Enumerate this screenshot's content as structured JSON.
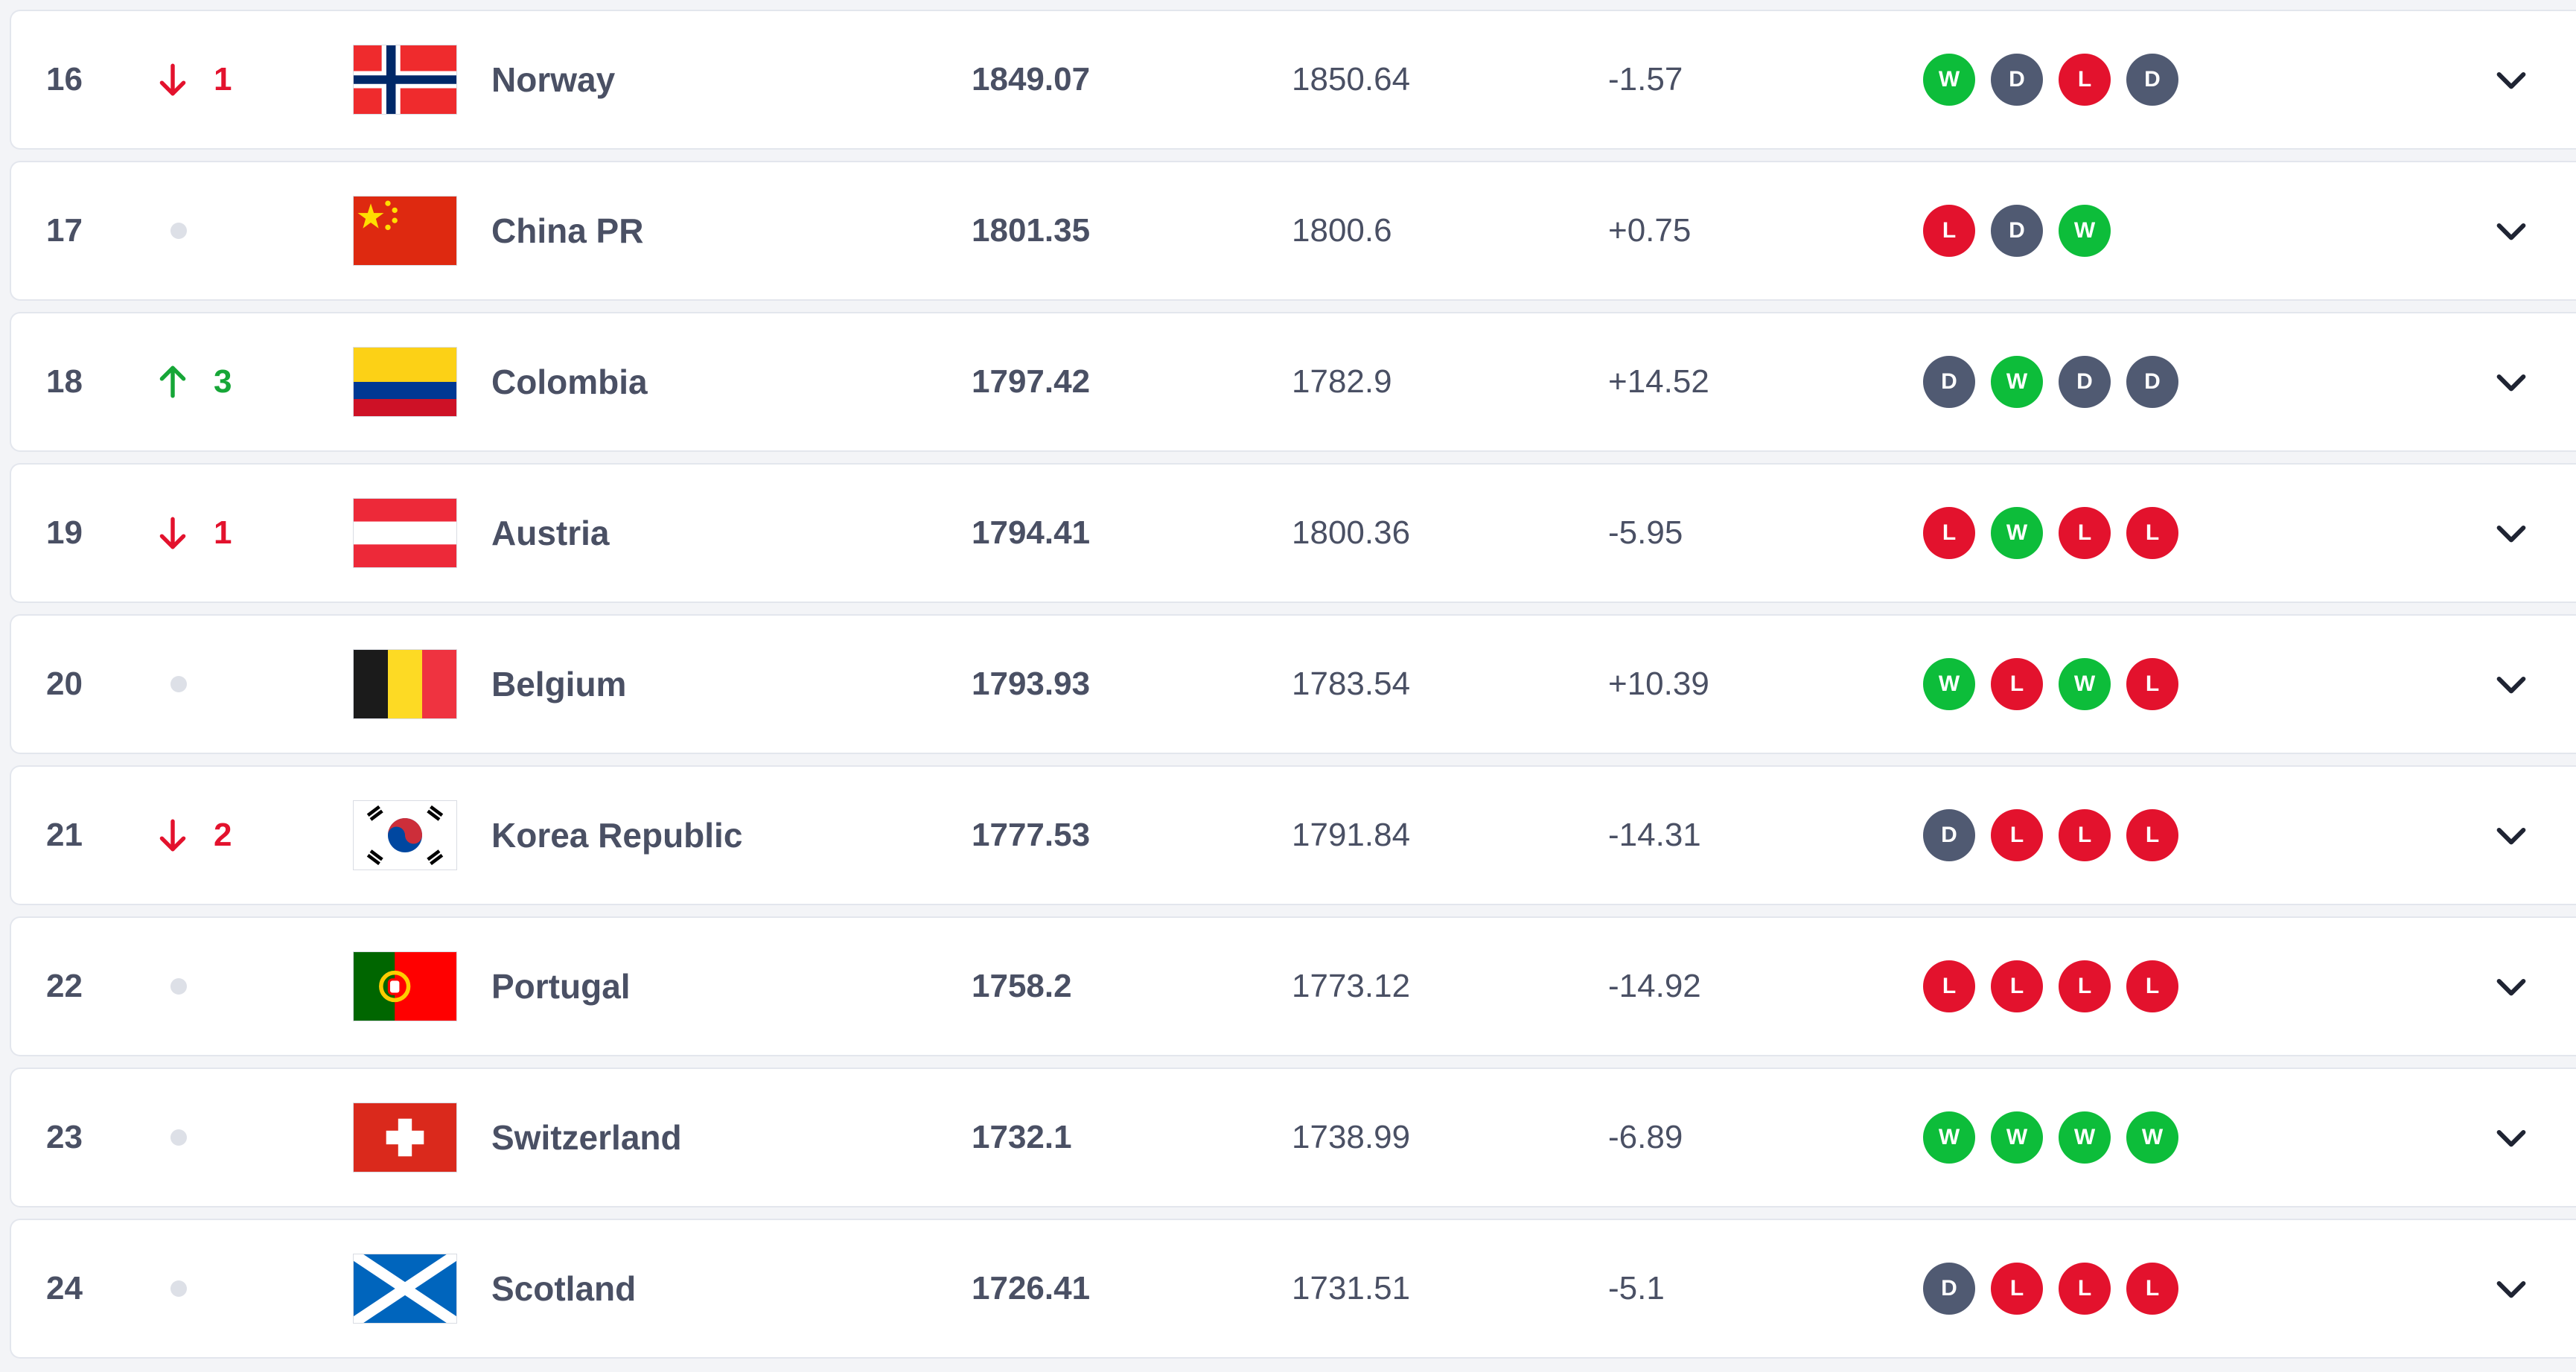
{
  "colors": {
    "win": "#0dbd3a",
    "draw": "#505a72",
    "loss": "#e3122d",
    "up": "#16a637",
    "down": "#e3122d"
  },
  "rows": [
    {
      "rank": "16",
      "move_dir": "down",
      "move_val": "1",
      "team": "Norway",
      "flag": "norway",
      "total": "1849.07",
      "previous": "1850.64",
      "diff": "-1.57",
      "form": [
        "W",
        "D",
        "L",
        "D"
      ]
    },
    {
      "rank": "17",
      "move_dir": "none",
      "move_val": "",
      "team": "China PR",
      "flag": "china",
      "total": "1801.35",
      "previous": "1800.6",
      "diff": "+0.75",
      "form": [
        "L",
        "D",
        "W"
      ]
    },
    {
      "rank": "18",
      "move_dir": "up",
      "move_val": "3",
      "team": "Colombia",
      "flag": "colombia",
      "total": "1797.42",
      "previous": "1782.9",
      "diff": "+14.52",
      "form": [
        "D",
        "W",
        "D",
        "D"
      ]
    },
    {
      "rank": "19",
      "move_dir": "down",
      "move_val": "1",
      "team": "Austria",
      "flag": "austria",
      "total": "1794.41",
      "previous": "1800.36",
      "diff": "-5.95",
      "form": [
        "L",
        "W",
        "L",
        "L"
      ]
    },
    {
      "rank": "20",
      "move_dir": "none",
      "move_val": "",
      "team": "Belgium",
      "flag": "belgium",
      "total": "1793.93",
      "previous": "1783.54",
      "diff": "+10.39",
      "form": [
        "W",
        "L",
        "W",
        "L"
      ]
    },
    {
      "rank": "21",
      "move_dir": "down",
      "move_val": "2",
      "team": "Korea Republic",
      "flag": "korea",
      "total": "1777.53",
      "previous": "1791.84",
      "diff": "-14.31",
      "form": [
        "D",
        "L",
        "L",
        "L"
      ]
    },
    {
      "rank": "22",
      "move_dir": "none",
      "move_val": "",
      "team": "Portugal",
      "flag": "portugal",
      "total": "1758.2",
      "previous": "1773.12",
      "diff": "-14.92",
      "form": [
        "L",
        "L",
        "L",
        "L"
      ]
    },
    {
      "rank": "23",
      "move_dir": "none",
      "move_val": "",
      "team": "Switzerland",
      "flag": "switzerland",
      "total": "1732.1",
      "previous": "1738.99",
      "diff": "-6.89",
      "form": [
        "W",
        "W",
        "W",
        "W"
      ]
    },
    {
      "rank": "24",
      "move_dir": "none",
      "move_val": "",
      "team": "Scotland",
      "flag": "scotland",
      "total": "1726.41",
      "previous": "1731.51",
      "diff": "-5.1",
      "form": [
        "D",
        "L",
        "L",
        "L"
      ]
    }
  ]
}
